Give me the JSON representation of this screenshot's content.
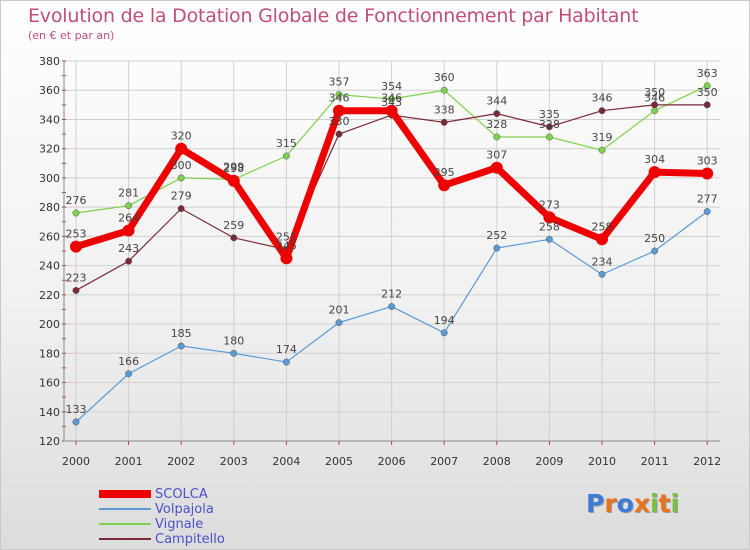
{
  "header": {
    "title": "Evolution de la Dotation Globale de Fonctionnement par Habitant",
    "subtitle": "(en € et par an)"
  },
  "chart_data": {
    "type": "line",
    "title": "Evolution de la Dotation Globale de Fonctionnement par Habitant",
    "subtitle": "(en € et par an)",
    "xlabel": "",
    "ylabel": "",
    "categories": [
      "2000",
      "2001",
      "2002",
      "2003",
      "2004",
      "2005",
      "2006",
      "2007",
      "2008",
      "2009",
      "2010",
      "2011",
      "2012"
    ],
    "ylim": [
      120,
      380
    ],
    "yticks": [
      120,
      140,
      160,
      180,
      200,
      220,
      240,
      260,
      280,
      300,
      320,
      340,
      360,
      380
    ],
    "grid": true,
    "legend": "bottom-left",
    "series": [
      {
        "name": "SCOLCA",
        "color": "#ee0000",
        "values": [
          253,
          264,
          320,
          298,
          245,
          346,
          346,
          295,
          307,
          273,
          258,
          304,
          303
        ]
      },
      {
        "name": "Volpajola",
        "color": "#5b9bd5",
        "values": [
          133,
          166,
          185,
          180,
          174,
          201,
          212,
          194,
          252,
          258,
          234,
          250,
          277
        ]
      },
      {
        "name": "Vignale",
        "color": "#7ed24e",
        "values": [
          276,
          281,
          300,
          299,
          315,
          357,
          354,
          360,
          328,
          328,
          319,
          346,
          363
        ]
      },
      {
        "name": "Campitello",
        "color": "#7a2a35",
        "values": [
          223,
          243,
          279,
          259,
          251,
          330,
          343,
          338,
          344,
          335,
          346,
          350,
          350
        ]
      }
    ]
  },
  "logo": {
    "letters": [
      "P",
      "r",
      "o",
      "x",
      "i",
      "t",
      "i"
    ],
    "colors": [
      "#3d7bd6",
      "#e8731b",
      "#3d7bd6",
      "#e8731b",
      "#7ac142",
      "#e8731b",
      "#7ac142"
    ]
  }
}
